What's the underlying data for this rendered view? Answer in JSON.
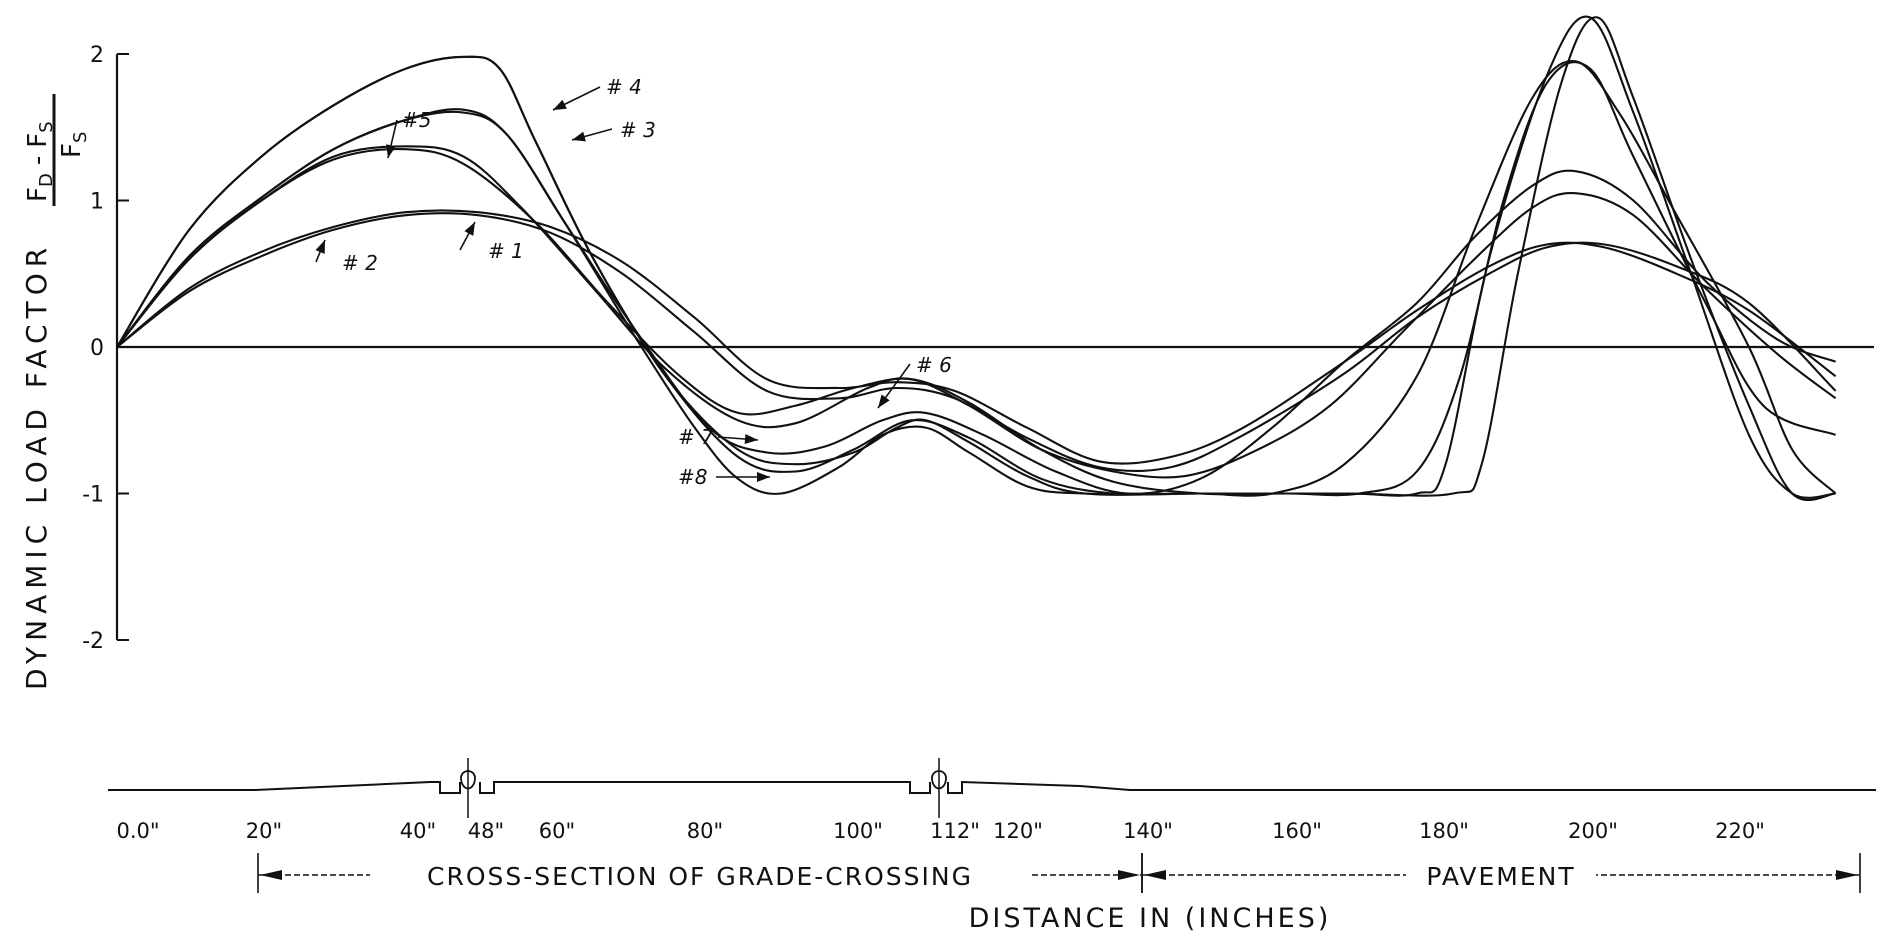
{
  "chart_data": {
    "type": "line",
    "ylabel": "DYNAMIC LOAD FACTOR",
    "ylabel_fraction": {
      "num_main": "F",
      "num_sub1": "D",
      "num_minus": "-",
      "num_main2": "F",
      "num_sub2": "S",
      "den_main": "F",
      "den_sub": "S"
    },
    "xlabel": "DISTANCE IN (INCHES)",
    "ylim": [
      -2,
      2
    ],
    "xlim": [
      0,
      240
    ],
    "yticks": [
      "2",
      "1",
      "0",
      "-1",
      "-2"
    ],
    "xticks": [
      {
        "label": "0.0\"",
        "x": 0
      },
      {
        "label": "20\"",
        "x": 20
      },
      {
        "label": "40\"",
        "x": 40
      },
      {
        "label": "48\"",
        "x": 48
      },
      {
        "label": "60\"",
        "x": 60
      },
      {
        "label": "80\"",
        "x": 80
      },
      {
        "label": "100\"",
        "x": 100
      },
      {
        "label": "112\"",
        "x": 112
      },
      {
        "label": "120\"",
        "x": 120
      },
      {
        "label": "140\"",
        "x": 140
      },
      {
        "label": "160\"",
        "x": 160
      },
      {
        "label": "180\"",
        "x": 180
      },
      {
        "label": "200\"",
        "x": 200
      },
      {
        "label": "220\"",
        "x": 220
      }
    ],
    "bands": [
      {
        "label": "CROSS-SECTION OF GRADE-CROSSING",
        "from": 20,
        "to": 140
      },
      {
        "label": "PAVEMENT",
        "from": 140,
        "to": 238
      }
    ],
    "grid": false,
    "series": [
      {
        "name": "#1",
        "points": [
          [
            0,
            0
          ],
          [
            10,
            0.4
          ],
          [
            20,
            0.65
          ],
          [
            30,
            0.82
          ],
          [
            40,
            0.92
          ],
          [
            50,
            0.92
          ],
          [
            60,
            0.82
          ],
          [
            70,
            0.58
          ],
          [
            80,
            0.2
          ],
          [
            90,
            -0.22
          ],
          [
            100,
            -0.28
          ],
          [
            108,
            -0.24
          ],
          [
            116,
            -0.3
          ],
          [
            126,
            -0.55
          ],
          [
            136,
            -0.78
          ],
          [
            146,
            -0.75
          ],
          [
            156,
            -0.55
          ],
          [
            170,
            -0.1
          ],
          [
            180,
            0.25
          ],
          [
            190,
            0.55
          ],
          [
            198,
            0.7
          ],
          [
            206,
            0.68
          ],
          [
            216,
            0.5
          ],
          [
            226,
            0.25
          ],
          [
            238,
            -0.2
          ]
        ]
      },
      {
        "name": "#2",
        "points": [
          [
            0,
            0
          ],
          [
            10,
            0.38
          ],
          [
            20,
            0.62
          ],
          [
            30,
            0.8
          ],
          [
            40,
            0.9
          ],
          [
            50,
            0.9
          ],
          [
            60,
            0.78
          ],
          [
            70,
            0.5
          ],
          [
            80,
            0.1
          ],
          [
            90,
            -0.3
          ],
          [
            100,
            -0.35
          ],
          [
            108,
            -0.28
          ],
          [
            116,
            -0.35
          ],
          [
            126,
            -0.62
          ],
          [
            136,
            -0.82
          ],
          [
            146,
            -0.82
          ],
          [
            156,
            -0.6
          ],
          [
            170,
            -0.18
          ],
          [
            180,
            0.2
          ],
          [
            190,
            0.5
          ],
          [
            198,
            0.68
          ],
          [
            206,
            0.7
          ],
          [
            216,
            0.55
          ],
          [
            226,
            0.3
          ],
          [
            238,
            -0.3
          ]
        ]
      },
      {
        "name": "#3",
        "points": [
          [
            0,
            0
          ],
          [
            10,
            0.6
          ],
          [
            20,
            1.0
          ],
          [
            30,
            1.3
          ],
          [
            40,
            1.37
          ],
          [
            48,
            1.3
          ],
          [
            56,
            0.95
          ],
          [
            66,
            0.4
          ],
          [
            76,
            -0.15
          ],
          [
            86,
            -0.5
          ],
          [
            94,
            -0.52
          ],
          [
            104,
            -0.28
          ],
          [
            110,
            -0.22
          ],
          [
            118,
            -0.4
          ],
          [
            128,
            -0.7
          ],
          [
            138,
            -0.85
          ],
          [
            148,
            -0.88
          ],
          [
            158,
            -0.7
          ],
          [
            168,
            -0.4
          ],
          [
            178,
            0.1
          ],
          [
            188,
            0.6
          ],
          [
            196,
            0.95
          ],
          [
            202,
            1.05
          ],
          [
            210,
            0.9
          ],
          [
            220,
            0.4
          ],
          [
            230,
            -0.05
          ],
          [
            238,
            -0.35
          ]
        ]
      },
      {
        "name": "#4",
        "points": [
          [
            0,
            0
          ],
          [
            10,
            0.62
          ],
          [
            20,
            1.02
          ],
          [
            30,
            1.35
          ],
          [
            40,
            1.55
          ],
          [
            48,
            1.6
          ],
          [
            54,
            1.45
          ],
          [
            62,
            0.85
          ],
          [
            72,
            0.1
          ],
          [
            82,
            -0.55
          ],
          [
            90,
            -0.72
          ],
          [
            98,
            -0.68
          ],
          [
            106,
            -0.5
          ],
          [
            112,
            -0.45
          ],
          [
            120,
            -0.6
          ],
          [
            130,
            -0.85
          ],
          [
            140,
            -1.0
          ],
          [
            150,
            -0.9
          ],
          [
            160,
            -0.55
          ],
          [
            170,
            -0.1
          ],
          [
            180,
            0.3
          ],
          [
            188,
            0.75
          ],
          [
            196,
            1.1
          ],
          [
            202,
            1.2
          ],
          [
            210,
            1.0
          ],
          [
            220,
            0.45
          ],
          [
            230,
            0.05
          ],
          [
            238,
            -0.1
          ]
        ]
      },
      {
        "name": "#5",
        "points": [
          [
            0,
            0
          ],
          [
            10,
            0.8
          ],
          [
            20,
            1.3
          ],
          [
            30,
            1.65
          ],
          [
            40,
            1.9
          ],
          [
            48,
            1.98
          ],
          [
            53,
            1.9
          ],
          [
            58,
            1.4
          ],
          [
            66,
            0.6
          ],
          [
            76,
            -0.2
          ],
          [
            86,
            -0.75
          ],
          [
            94,
            -0.85
          ],
          [
            102,
            -0.7
          ],
          [
            110,
            -0.5
          ],
          [
            118,
            -0.62
          ],
          [
            128,
            -0.9
          ],
          [
            138,
            -1.0
          ],
          [
            150,
            -1.0
          ],
          [
            160,
            -1.0
          ],
          [
            170,
            -0.8
          ],
          [
            180,
            -0.2
          ],
          [
            188,
            0.8
          ],
          [
            196,
            1.7
          ],
          [
            202,
            1.95
          ],
          [
            208,
            1.6
          ],
          [
            216,
            0.9
          ],
          [
            226,
            0.0
          ],
          [
            232,
            -0.7
          ],
          [
            238,
            -1.0
          ]
        ]
      },
      {
        "name": "#6",
        "points": [
          [
            0,
            0
          ],
          [
            10,
            0.6
          ],
          [
            20,
            1.0
          ],
          [
            30,
            1.28
          ],
          [
            40,
            1.35
          ],
          [
            48,
            1.25
          ],
          [
            58,
            0.85
          ],
          [
            68,
            0.3
          ],
          [
            78,
            -0.2
          ],
          [
            86,
            -0.45
          ],
          [
            94,
            -0.4
          ],
          [
            102,
            -0.28
          ],
          [
            110,
            -0.22
          ],
          [
            118,
            -0.38
          ],
          [
            128,
            -0.7
          ],
          [
            138,
            -0.92
          ],
          [
            150,
            -1.0
          ],
          [
            162,
            -1.0
          ],
          [
            172,
            -1.0
          ],
          [
            180,
            -0.85
          ],
          [
            186,
            -0.2
          ],
          [
            192,
            1.0
          ],
          [
            198,
            1.8
          ],
          [
            204,
            1.9
          ],
          [
            210,
            1.3
          ],
          [
            220,
            0.3
          ],
          [
            228,
            -0.4
          ],
          [
            238,
            -0.6
          ]
        ]
      },
      {
        "name": "#7",
        "points": [
          [
            0,
            0
          ],
          [
            10,
            0.8
          ],
          [
            20,
            1.3
          ],
          [
            30,
            1.65
          ],
          [
            40,
            1.9
          ],
          [
            48,
            1.98
          ],
          [
            53,
            1.9
          ],
          [
            58,
            1.4
          ],
          [
            66,
            0.6
          ],
          [
            76,
            -0.2
          ],
          [
            86,
            -0.7
          ],
          [
            94,
            -0.8
          ],
          [
            102,
            -0.72
          ],
          [
            108,
            -0.55
          ],
          [
            112,
            -0.5
          ],
          [
            118,
            -0.65
          ],
          [
            126,
            -0.88
          ],
          [
            134,
            -1.0
          ],
          [
            150,
            -1.0
          ],
          [
            170,
            -1.0
          ],
          [
            180,
            -1.0
          ],
          [
            184,
            -0.8
          ],
          [
            190,
            0.6
          ],
          [
            198,
            1.85
          ],
          [
            204,
            2.25
          ],
          [
            210,
            1.6
          ],
          [
            218,
            0.5
          ],
          [
            226,
            -0.6
          ],
          [
            232,
            -1.0
          ],
          [
            238,
            -1.0
          ]
        ]
      },
      {
        "name": "#8",
        "points": [
          [
            0,
            0
          ],
          [
            10,
            0.62
          ],
          [
            20,
            1.02
          ],
          [
            30,
            1.35
          ],
          [
            40,
            1.55
          ],
          [
            48,
            1.62
          ],
          [
            54,
            1.45
          ],
          [
            62,
            0.85
          ],
          [
            72,
            0.05
          ],
          [
            80,
            -0.55
          ],
          [
            86,
            -0.9
          ],
          [
            92,
            -1.0
          ],
          [
            100,
            -0.82
          ],
          [
            106,
            -0.6
          ],
          [
            112,
            -0.55
          ],
          [
            118,
            -0.72
          ],
          [
            126,
            -0.95
          ],
          [
            134,
            -1.0
          ],
          [
            150,
            -1.0
          ],
          [
            170,
            -1.0
          ],
          [
            185,
            -1.0
          ],
          [
            189,
            -0.8
          ],
          [
            194,
            0.5
          ],
          [
            200,
            1.8
          ],
          [
            205,
            2.25
          ],
          [
            210,
            1.7
          ],
          [
            218,
            0.6
          ],
          [
            226,
            -0.4
          ],
          [
            232,
            -1.0
          ],
          [
            238,
            -1.0
          ]
        ]
      }
    ],
    "annotations": [
      {
        "text": "# 1",
        "series": "#1"
      },
      {
        "text": "# 2",
        "series": "#2"
      },
      {
        "text": "# 3",
        "series": "#3"
      },
      {
        "text": "# 4",
        "series": "#4"
      },
      {
        "text": "#5",
        "series": "#5"
      },
      {
        "text": "# 6",
        "series": "#6"
      },
      {
        "text": "# 7",
        "series": "#7"
      },
      {
        "text": "#8",
        "series": "#8"
      }
    ]
  }
}
